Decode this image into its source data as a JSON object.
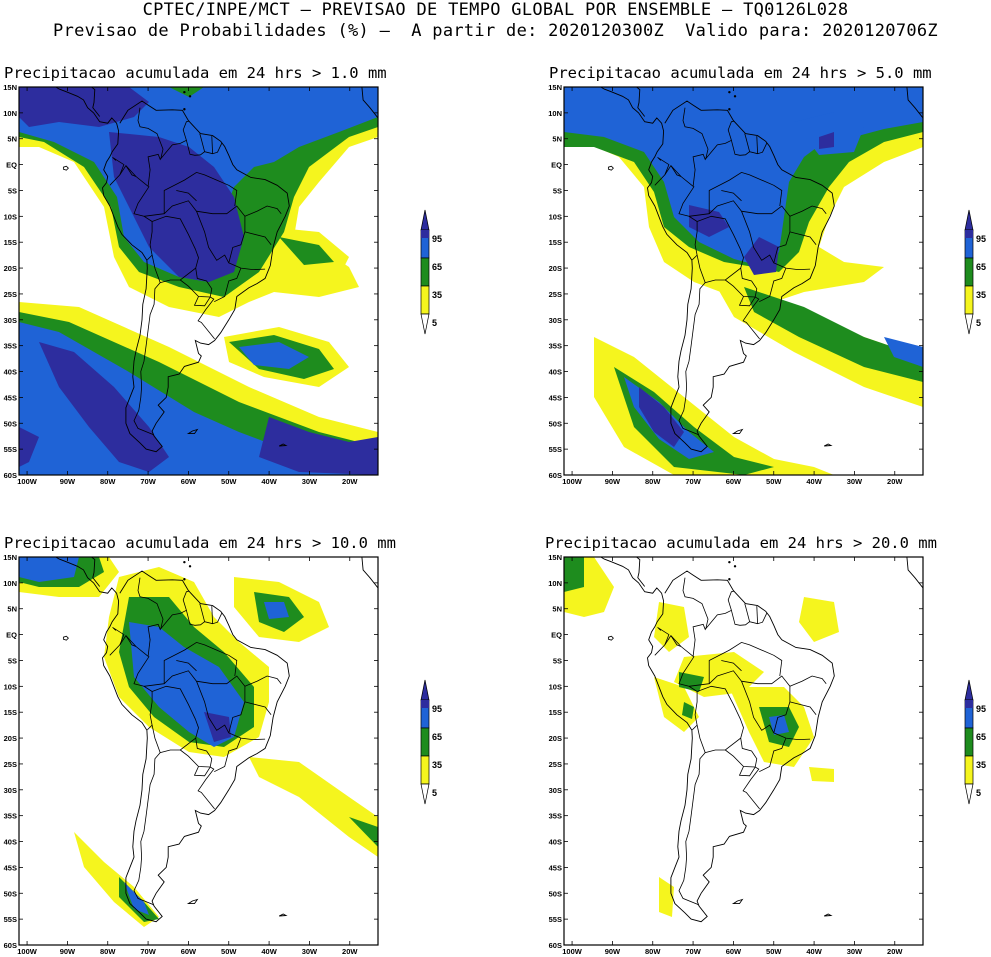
{
  "header": {
    "line1": "CPTEC/INPE/MCT – PREVISAO DE TEMPO GLOBAL POR ENSEMBLE – TQ0126L028",
    "line2": "Previsao de Probabilidades (%) –  A partir de: 2020120300Z  Valido para: 2020120706Z"
  },
  "lat_labels": [
    "15N",
    "10N",
    "5N",
    "EQ",
    "5S",
    "10S",
    "15S",
    "20S",
    "25S",
    "30S",
    "35S",
    "40S",
    "45S",
    "50S",
    "55S",
    "60S"
  ],
  "lon_labels": [
    "100W",
    "90W",
    "80W",
    "70W",
    "60W",
    "50W",
    "40W",
    "30W",
    "20W"
  ],
  "colorbar": {
    "levels": [
      "95",
      "65",
      "35",
      "5"
    ],
    "colors": {
      "c95": "#2d2d9e",
      "c65": "#1f63d6",
      "c35": "#1e8c1e",
      "c5": "#f5f51e"
    }
  },
  "panels": [
    {
      "title": "Precipitacao acumulada em 24 hrs > 1.0 mm"
    },
    {
      "title": "Precipitacao acumulada em 24 hrs > 5.0 mm"
    },
    {
      "title": "Precipitacao acumulada em 24 hrs > 10.0 mm"
    },
    {
      "title": "Precipitacao acumulada em 24 hrs > 20.0 mm"
    }
  ]
}
